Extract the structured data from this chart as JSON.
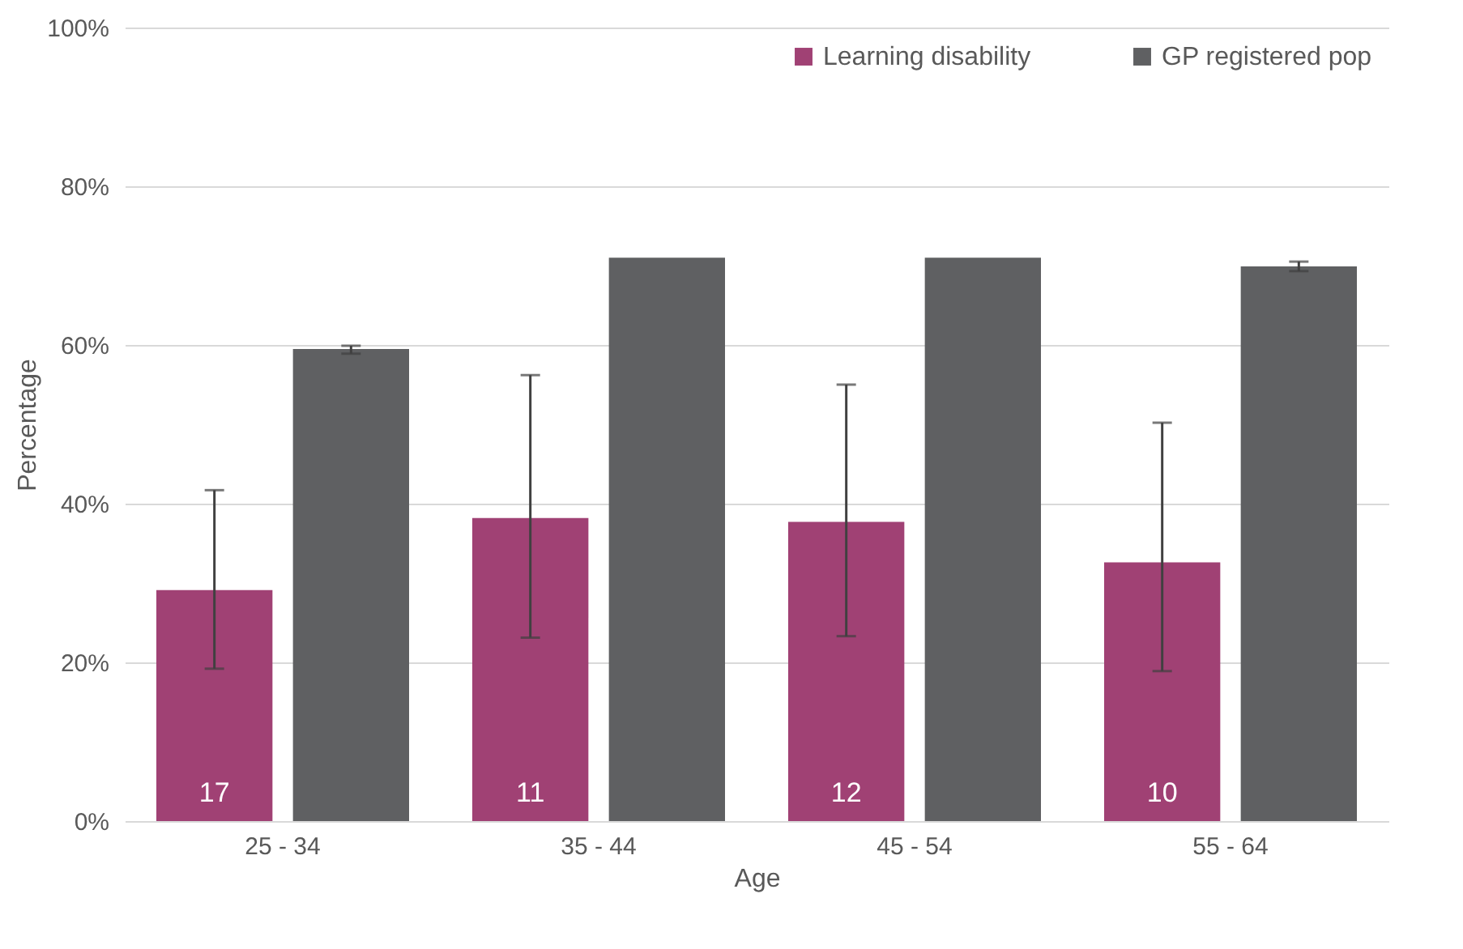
{
  "chart_data": {
    "type": "bar",
    "xlabel": "Age",
    "ylabel": "Percentage",
    "categories": [
      "25 - 34",
      "35 - 44",
      "45 - 54",
      "55 - 64"
    ],
    "series": [
      {
        "name": "Learning disability",
        "color": "#a04174",
        "values": [
          29.1,
          38.2,
          37.7,
          32.6
        ],
        "errors": [
          [
            19.2,
            41.7
          ],
          [
            23.1,
            56.2
          ],
          [
            23.3,
            55.0
          ],
          [
            18.9,
            50.2
          ]
        ]
      },
      {
        "name": "GP registered pop",
        "color": "#5f6062",
        "values": [
          59.5,
          71,
          71,
          69.9
        ],
        "errors": [
          [
            58.9,
            59.9
          ],
          null,
          null,
          [
            69.3,
            70.5
          ]
        ]
      }
    ],
    "ylim": [
      0,
      100
    ],
    "yticks": [
      {
        "value": 0,
        "label": "0%"
      },
      {
        "value": 20,
        "label": "20%"
      },
      {
        "value": 40,
        "label": "40%"
      },
      {
        "value": 60,
        "label": "60%"
      },
      {
        "value": 80,
        "label": "80%"
      },
      {
        "value": 100,
        "label": "100%"
      }
    ],
    "annotations": [
      "17",
      "11",
      "12",
      "10"
    ],
    "grid": "y",
    "legend": "top right"
  }
}
